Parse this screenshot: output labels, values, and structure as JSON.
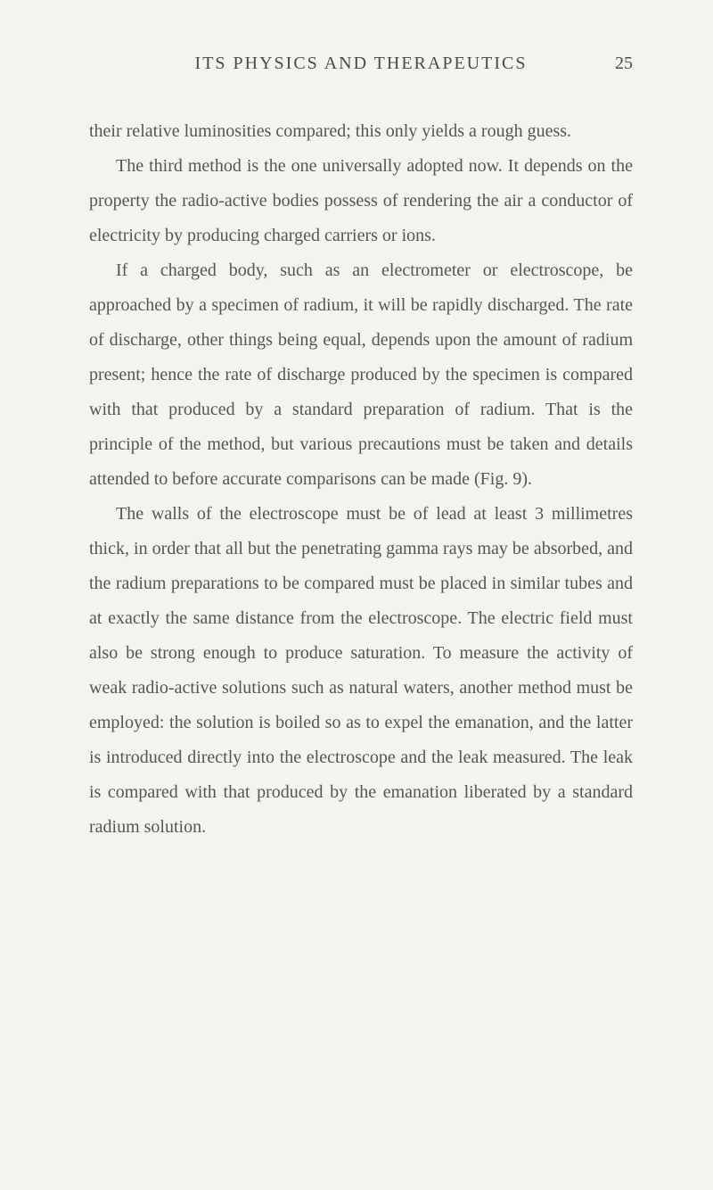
{
  "header": {
    "title": "ITS PHYSICS AND THERAPEUTICS",
    "page_number": "25"
  },
  "paragraphs": {
    "p1": "their relative luminosities compared; this only yields a rough guess.",
    "p2": "The third method is the one universally adopted now. It depends on the property the radio-active bodies possess of rendering the air a conductor of electricity by producing charged carriers or ions.",
    "p3": "If a charged body, such as an electrometer or electroscope, be approached by a specimen of radium, it will be rapidly discharged. The rate of discharge, other things being equal, depends upon the amount of radium present; hence the rate of discharge produced by the specimen is compared with that produced by a standard preparation of radium. That is the principle of the method, but various precautions must be taken and details attended to before accurate comparisons can be made (Fig. 9).",
    "p4": "The walls of the electroscope must be of lead at least 3 millimetres thick, in order that all but the penetrating gamma rays may be absorbed, and the radium preparations to be compared must be placed in similar tubes and at exactly the same distance from the electroscope. The electric field must also be strong enough to produce saturation. To measure the activity of weak radio-active solutions such as natural waters, another method must be employed: the solution is boiled so as to expel the emanation, and the latter is introduced directly into the electroscope and the leak measured. The leak is compared with that produced by the emanation liberated by a standard radium solution."
  }
}
